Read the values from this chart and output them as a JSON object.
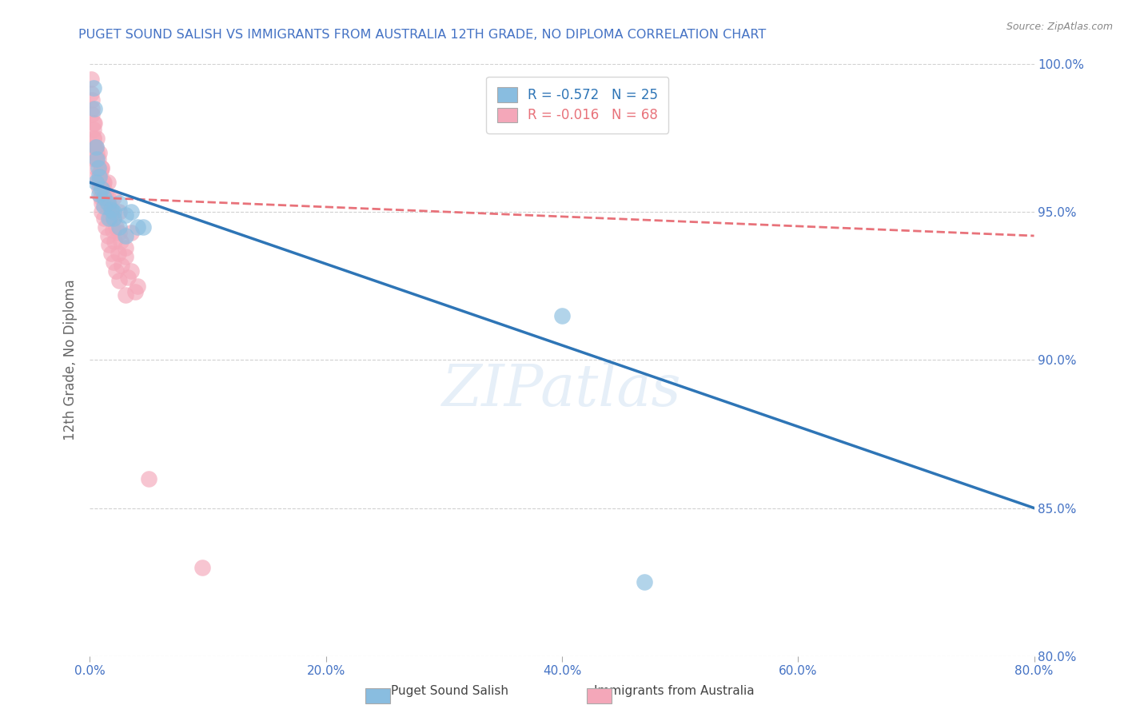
{
  "title": "PUGET SOUND SALISH VS IMMIGRANTS FROM AUSTRALIA 12TH GRADE, NO DIPLOMA CORRELATION CHART",
  "source": "Source: ZipAtlas.com",
  "ylabel": "12th Grade, No Diploma",
  "xlim": [
    0.0,
    80.0
  ],
  "ylim": [
    80.0,
    100.0
  ],
  "xticks": [
    0.0,
    20.0,
    40.0,
    60.0,
    80.0
  ],
  "yticks": [
    80.0,
    85.0,
    90.0,
    95.0,
    100.0
  ],
  "blue_color": "#89bde0",
  "pink_color": "#f4a7b9",
  "blue_line_color": "#2E75B6",
  "pink_line_color": "#E8727A",
  "blue_R": -0.572,
  "blue_N": 25,
  "pink_R": -0.016,
  "pink_N": 68,
  "blue_line_x0": 0.0,
  "blue_line_y0": 96.0,
  "blue_line_x1": 80.0,
  "blue_line_y1": 85.0,
  "pink_line_x0": 0.0,
  "pink_line_y0": 95.5,
  "pink_line_x1": 80.0,
  "pink_line_y1": 94.2,
  "blue_scatter_x": [
    0.3,
    0.4,
    0.5,
    0.6,
    0.7,
    0.8,
    1.0,
    1.2,
    1.5,
    1.8,
    2.0,
    2.5,
    3.0,
    3.5,
    4.0,
    0.5,
    0.8,
    1.2,
    1.6,
    2.0,
    2.5,
    3.0,
    4.5,
    40.0,
    47.0
  ],
  "blue_scatter_y": [
    99.2,
    98.5,
    97.2,
    96.8,
    96.5,
    96.2,
    95.8,
    95.5,
    95.3,
    95.1,
    94.8,
    94.5,
    94.2,
    95.0,
    94.5,
    96.0,
    95.6,
    95.2,
    94.8,
    95.0,
    95.3,
    94.9,
    94.5,
    91.5,
    82.5
  ],
  "pink_scatter_x": [
    0.1,
    0.1,
    0.2,
    0.2,
    0.3,
    0.3,
    0.4,
    0.4,
    0.5,
    0.5,
    0.6,
    0.7,
    0.8,
    0.9,
    1.0,
    1.0,
    1.2,
    1.3,
    1.5,
    1.6,
    1.8,
    2.0,
    2.2,
    2.5,
    3.0,
    0.3,
    0.5,
    0.7,
    0.9,
    1.1,
    1.3,
    1.5,
    1.7,
    1.9,
    2.1,
    2.4,
    2.7,
    3.2,
    3.8,
    0.2,
    0.4,
    0.6,
    0.8,
    1.0,
    1.2,
    1.5,
    1.8,
    2.2,
    2.6,
    3.0,
    3.5,
    4.0,
    0.4,
    0.8,
    1.2,
    1.6,
    2.0,
    2.5,
    3.0,
    0.3,
    0.6,
    1.0,
    1.5,
    2.0,
    2.5,
    3.5,
    5.0,
    9.5
  ],
  "pink_scatter_y": [
    99.5,
    99.0,
    98.8,
    98.3,
    98.0,
    97.5,
    97.2,
    97.0,
    96.8,
    96.5,
    96.2,
    96.0,
    95.8,
    95.5,
    95.3,
    95.0,
    94.8,
    94.5,
    94.2,
    93.9,
    93.6,
    93.3,
    93.0,
    92.7,
    92.2,
    97.8,
    97.2,
    96.8,
    96.4,
    96.0,
    95.6,
    95.2,
    94.8,
    94.4,
    94.0,
    93.6,
    93.2,
    92.8,
    92.3,
    98.5,
    98.0,
    97.5,
    97.0,
    96.5,
    96.0,
    95.5,
    95.0,
    94.5,
    94.0,
    93.5,
    93.0,
    92.5,
    96.8,
    96.3,
    95.8,
    95.3,
    94.8,
    94.3,
    93.8,
    97.5,
    97.0,
    96.5,
    96.0,
    95.5,
    95.0,
    94.3,
    86.0,
    83.0
  ],
  "watermark_text": "ZIPatlas",
  "title_color": "#4472c4",
  "axis_label_color": "#666666",
  "tick_label_color": "#4472c4",
  "grid_color": "#cccccc"
}
